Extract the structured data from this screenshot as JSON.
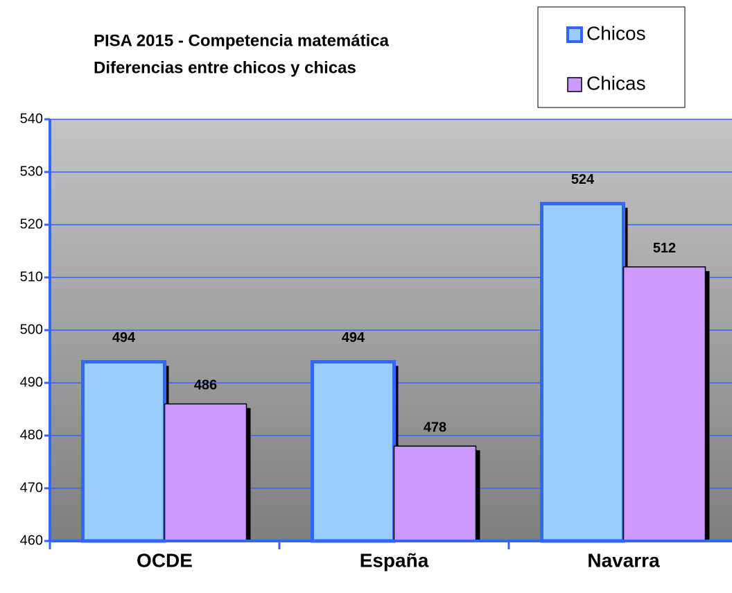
{
  "chart_data": {
    "type": "bar",
    "title": "PISA 2015 - Competencia matemática",
    "subtitle": "Diferencias entre chicos y chicas",
    "categories": [
      "OCDE",
      "España",
      "Navarra"
    ],
    "series": [
      {
        "name": "Chicos",
        "color": "#99ccff",
        "edgecolor": "#3366ff",
        "values": [
          494,
          494,
          524
        ]
      },
      {
        "name": "Chicas",
        "color": "#cc99ff",
        "edgecolor": "#000000",
        "values": [
          486,
          478,
          512
        ]
      }
    ],
    "ylim": [
      460,
      540
    ],
    "yticks": [
      460,
      470,
      480,
      490,
      500,
      510,
      520,
      530,
      540
    ],
    "grid": true,
    "legend": "upper right"
  }
}
